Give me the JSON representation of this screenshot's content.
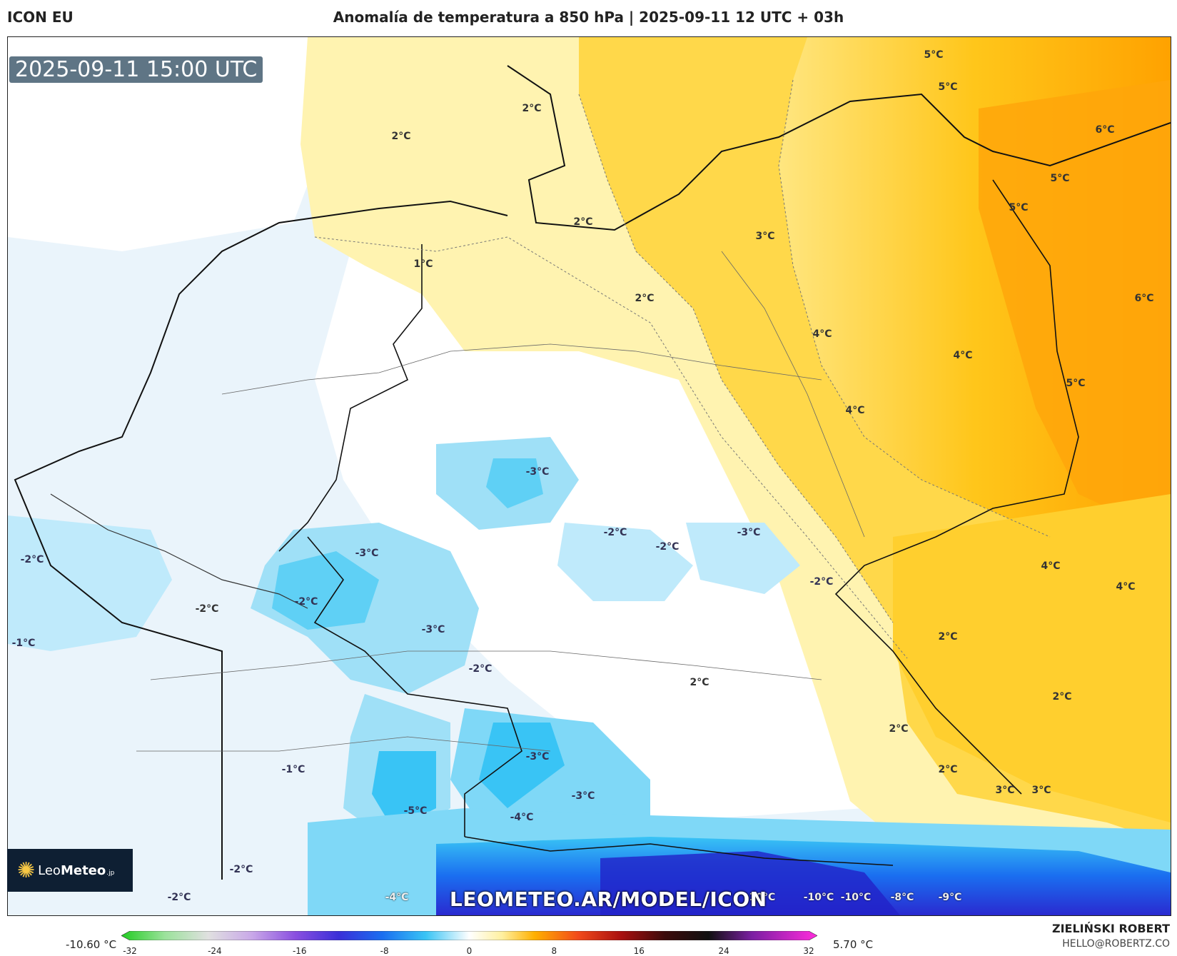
{
  "header": {
    "model": "ICON EU",
    "title": "Anomalía de temperatura a 850 hPa | 2025-09-11 12 UTC + 03h"
  },
  "valid_time": "2025-09-11 15:00 UTC",
  "watermark": "LEOMETEO.AR/MODEL/ICON",
  "logo": {
    "name_light": "Leo",
    "name_bold": "Meteo",
    "suffix": ".jp"
  },
  "author": {
    "name": "ZIELIŃSKI ROBERT",
    "email": "HELLO@ROBERTZ.CO"
  },
  "colorbar": {
    "min_label": "-10.60 °C",
    "max_label": "5.70 °C",
    "ticks": [
      "-32",
      "-24",
      "-16",
      "-8",
      "0",
      "8",
      "16",
      "24",
      "32"
    ],
    "tick_values": [
      -32,
      -24,
      -16,
      -8,
      0,
      8,
      16,
      24,
      32
    ],
    "range": [
      -32,
      32
    ],
    "stops": [
      {
        "value": -32,
        "color": "#22cc22"
      },
      {
        "value": -28,
        "color": "#9be29b"
      },
      {
        "value": -24,
        "color": "#e0e0e0"
      },
      {
        "value": -20,
        "color": "#c9a8e8"
      },
      {
        "value": -16,
        "color": "#8a4fe0"
      },
      {
        "value": -12,
        "color": "#3a2fd8"
      },
      {
        "value": -8,
        "color": "#1a6ef0"
      },
      {
        "value": -4,
        "color": "#39c4f5"
      },
      {
        "value": 0,
        "color": "#ffffff"
      },
      {
        "value": 3,
        "color": "#fff0a0"
      },
      {
        "value": 6,
        "color": "#ffb000"
      },
      {
        "value": 10,
        "color": "#f24a1a"
      },
      {
        "value": 14,
        "color": "#a80f0f"
      },
      {
        "value": 18,
        "color": "#3b0b0b"
      },
      {
        "value": 22,
        "color": "#101010"
      },
      {
        "value": 26,
        "color": "#7b1fa2"
      },
      {
        "value": 32,
        "color": "#ff2bdc"
      }
    ]
  },
  "map_labels": [
    {
      "id": "l1",
      "text": "5°C"
    },
    {
      "id": "l2",
      "text": "5°C"
    },
    {
      "id": "l3",
      "text": "2°C"
    },
    {
      "id": "l4",
      "text": "2°C"
    },
    {
      "id": "l5",
      "text": "6°C"
    },
    {
      "id": "l6",
      "text": "5°C"
    },
    {
      "id": "l7",
      "text": "5°C"
    },
    {
      "id": "l8",
      "text": "2°C"
    },
    {
      "id": "l9",
      "text": "3°C"
    },
    {
      "id": "l10",
      "text": "1°C"
    },
    {
      "id": "l11",
      "text": "2°C"
    },
    {
      "id": "l12",
      "text": "6°C"
    },
    {
      "id": "l13",
      "text": "4°C"
    },
    {
      "id": "l14",
      "text": "4°C"
    },
    {
      "id": "l15",
      "text": "5°C"
    },
    {
      "id": "l16",
      "text": "4°C"
    },
    {
      "id": "l17",
      "text": "-3°C"
    },
    {
      "id": "l18",
      "text": "-3°C"
    },
    {
      "id": "l19",
      "text": "-2°C"
    },
    {
      "id": "l20",
      "text": "-2°C"
    },
    {
      "id": "l21",
      "text": "-2°C"
    },
    {
      "id": "l22",
      "text": "-3°C"
    },
    {
      "id": "l23",
      "text": "-2°C"
    },
    {
      "id": "l24",
      "text": "-2°C"
    },
    {
      "id": "l25",
      "text": "-2°C"
    },
    {
      "id": "l26",
      "text": "4°C"
    },
    {
      "id": "l27",
      "text": "4°C"
    },
    {
      "id": "l28",
      "text": "-1°C"
    },
    {
      "id": "l29",
      "text": "-3°C"
    },
    {
      "id": "l30",
      "text": "2°C"
    },
    {
      "id": "l31",
      "text": "-2°C"
    },
    {
      "id": "l32",
      "text": "2°C"
    },
    {
      "id": "l33",
      "text": "2°C"
    },
    {
      "id": "l34",
      "text": "2°C"
    },
    {
      "id": "l35",
      "text": "-3°C"
    },
    {
      "id": "l36",
      "text": "-1°C"
    },
    {
      "id": "l37",
      "text": "2°C"
    },
    {
      "id": "l38",
      "text": "-5°C"
    },
    {
      "id": "l39",
      "text": "-3°C"
    },
    {
      "id": "l40",
      "text": "-4°C"
    },
    {
      "id": "l41",
      "text": "3°C"
    },
    {
      "id": "l42",
      "text": "3°C"
    },
    {
      "id": "l43",
      "text": "-2°C"
    },
    {
      "id": "l44",
      "text": "-2°C"
    },
    {
      "id": "l45",
      "text": "-4°C"
    },
    {
      "id": "l46",
      "text": "-10°C"
    },
    {
      "id": "l47",
      "text": "-10°C"
    },
    {
      "id": "l48",
      "text": "-10°C"
    },
    {
      "id": "l49",
      "text": "-8°C"
    },
    {
      "id": "l50",
      "text": "-9°C"
    }
  ]
}
